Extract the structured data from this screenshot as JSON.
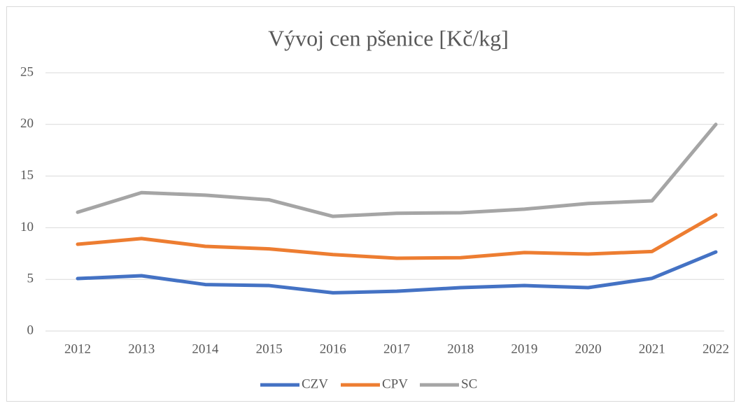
{
  "chart_data": {
    "type": "line",
    "title": "Vývoj cen pšenice [Kč/kg]",
    "categories": [
      "2012",
      "2013",
      "2014",
      "2015",
      "2016",
      "2017",
      "2018",
      "2019",
      "2020",
      "2021",
      "2022"
    ],
    "series": [
      {
        "name": "CZV",
        "color": "#4472c4",
        "values": [
          5.08,
          5.35,
          4.5,
          4.4,
          3.7,
          3.85,
          4.2,
          4.4,
          4.2,
          5.1,
          7.65
        ]
      },
      {
        "name": "CPV",
        "color": "#ed7d31",
        "values": [
          8.4,
          8.95,
          8.2,
          7.95,
          7.4,
          7.05,
          7.1,
          7.6,
          7.45,
          7.7,
          11.25
        ]
      },
      {
        "name": "SC",
        "color": "#a5a5a5",
        "values": [
          11.5,
          13.4,
          13.15,
          12.7,
          11.1,
          11.4,
          11.45,
          11.8,
          12.35,
          12.6,
          20.0
        ]
      }
    ],
    "ylim": [
      0,
      25
    ],
    "yticks": [
      0,
      5,
      10,
      15,
      20,
      25
    ],
    "grid": true,
    "legend": "bottom"
  }
}
